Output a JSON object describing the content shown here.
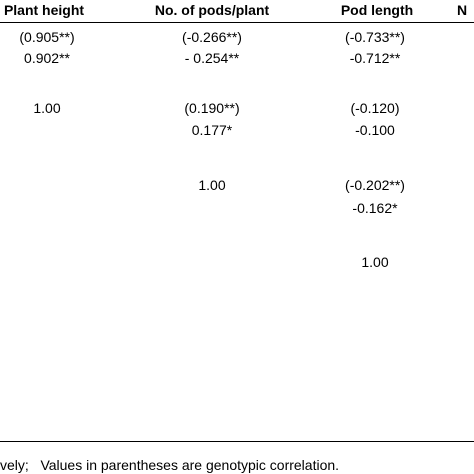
{
  "table": {
    "header": [
      "Plant height",
      "No. of pods/plant",
      "Pod length",
      "N"
    ],
    "rows": [
      [
        "(0.905**)",
        "(-0.266**)",
        "(-0.733**)"
      ],
      [
        "0.902**",
        "- 0.254**",
        "-0.712**"
      ],
      [
        "1.00",
        "(0.190**)",
        "(-0.120)"
      ],
      [
        null,
        "0.177*",
        "-0.100"
      ],
      [
        null,
        "1.00",
        "(-0.202**)"
      ],
      [
        null,
        null,
        "-0.162*"
      ],
      [
        null,
        null,
        "1.00"
      ]
    ]
  },
  "footnote": "vely;   Values in parentheses are genotypic correlation."
}
